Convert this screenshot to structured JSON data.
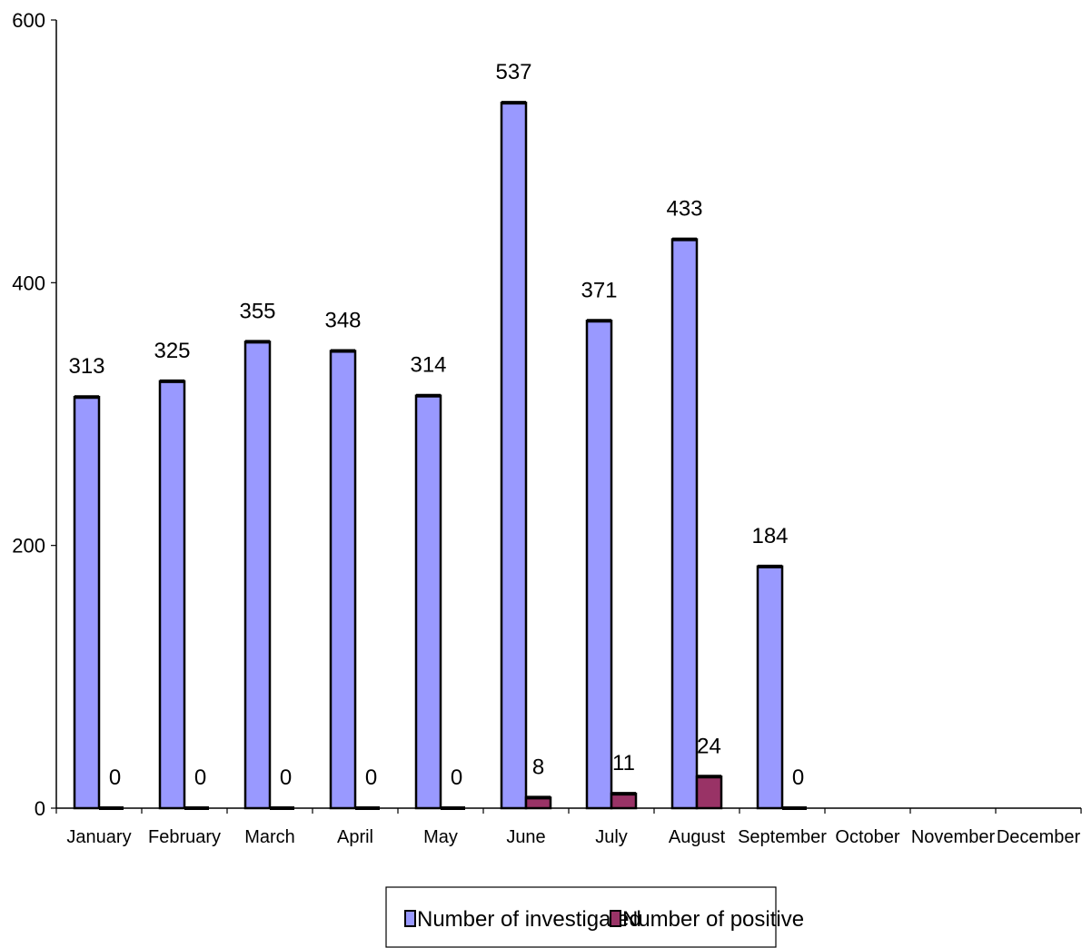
{
  "chart_data": {
    "type": "bar",
    "categories": [
      "January",
      "February",
      "March",
      "April",
      "May",
      "June",
      "July",
      "August",
      "September",
      "October",
      "November",
      "December"
    ],
    "series": [
      {
        "name": "Number of investigated",
        "values": [
          313,
          325,
          355,
          348,
          314,
          537,
          371,
          433,
          184,
          null,
          null,
          null
        ],
        "color": "#9999ff"
      },
      {
        "name": "Number of positive",
        "values": [
          0,
          0,
          0,
          0,
          0,
          8,
          11,
          24,
          0,
          null,
          null,
          null
        ],
        "color": "#993366"
      }
    ],
    "title": "",
    "xlabel": "",
    "ylabel": "",
    "ylim": [
      0,
      600
    ],
    "yticks": [
      "0",
      "200",
      "400",
      "600"
    ],
    "grid": false,
    "data_labels": true,
    "legend_position": "bottom"
  }
}
